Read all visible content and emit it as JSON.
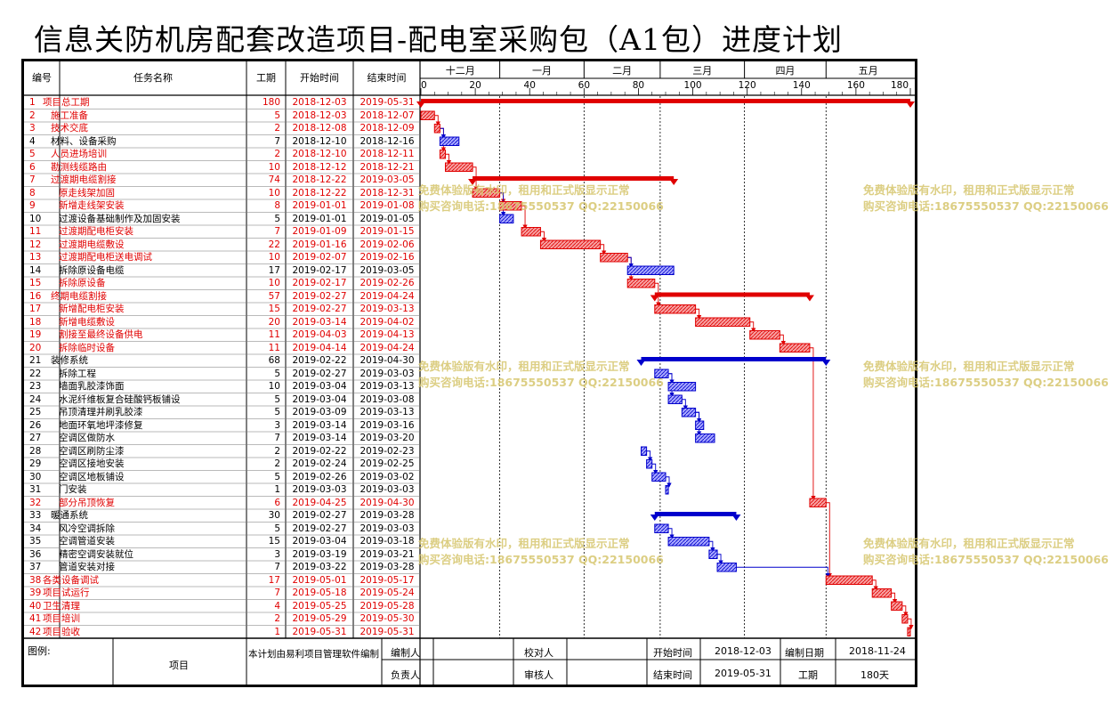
{
  "title": "信息关防机房配套改造项目-配电室采购包（A1包）进度计划",
  "header": {
    "id": "编号",
    "name": "任务名称",
    "duration": "工期",
    "start": "开始时间",
    "end": "结束时间"
  },
  "chart_data": {
    "type": "gantt",
    "months": [
      "十二月",
      "一月",
      "二月",
      "三月",
      "四月",
      "五月"
    ],
    "day_ticks": [
      "0",
      "20",
      "40",
      "60",
      "80",
      "100",
      "120",
      "140",
      "160",
      "180"
    ],
    "x_range_days": [
      0,
      180
    ],
    "project_start": "2018-12-03",
    "tasks": [
      {
        "id": "1",
        "name": "项目总工期",
        "duration": "180",
        "start": "2018-12-03",
        "end": "2019-05-31",
        "indent": 1,
        "summary": true,
        "critical": true
      },
      {
        "id": "2",
        "name": "施工准备",
        "duration": "5",
        "start": "2018-12-03",
        "end": "2018-12-07",
        "indent": 2,
        "summary": false,
        "critical": true
      },
      {
        "id": "3",
        "name": "技术交底",
        "duration": "2",
        "start": "2018-12-08",
        "end": "2018-12-09",
        "indent": 2,
        "summary": false,
        "critical": true
      },
      {
        "id": "4",
        "name": "材料、设备采购",
        "duration": "7",
        "start": "2018-12-10",
        "end": "2018-12-16",
        "indent": 2,
        "summary": false,
        "critical": false
      },
      {
        "id": "5",
        "name": "人员进场培训",
        "duration": "2",
        "start": "2018-12-10",
        "end": "2018-12-11",
        "indent": 2,
        "summary": false,
        "critical": true
      },
      {
        "id": "6",
        "name": "勘测线缆路由",
        "duration": "10",
        "start": "2018-12-12",
        "end": "2018-12-21",
        "indent": 2,
        "summary": false,
        "critical": true
      },
      {
        "id": "7",
        "name": "过渡期电缆割接",
        "duration": "74",
        "start": "2018-12-22",
        "end": "2019-03-05",
        "indent": 2,
        "summary": true,
        "critical": true
      },
      {
        "id": "8",
        "name": "原走线架加固",
        "duration": "10",
        "start": "2018-12-22",
        "end": "2018-12-31",
        "indent": 3,
        "summary": false,
        "critical": true
      },
      {
        "id": "9",
        "name": "新增走线架安装",
        "duration": "8",
        "start": "2019-01-01",
        "end": "2019-01-08",
        "indent": 3,
        "summary": false,
        "critical": true
      },
      {
        "id": "10",
        "name": "过渡设备基础制作及加固安装",
        "duration": "5",
        "start": "2019-01-01",
        "end": "2019-01-05",
        "indent": 3,
        "summary": false,
        "critical": false
      },
      {
        "id": "11",
        "name": "过渡期配电柜安装",
        "duration": "7",
        "start": "2019-01-09",
        "end": "2019-01-15",
        "indent": 3,
        "summary": false,
        "critical": true
      },
      {
        "id": "12",
        "name": "过渡期电缆敷设",
        "duration": "22",
        "start": "2019-01-16",
        "end": "2019-02-06",
        "indent": 3,
        "summary": false,
        "critical": true
      },
      {
        "id": "13",
        "name": "过渡期配电柜送电调试",
        "duration": "10",
        "start": "2019-02-07",
        "end": "2019-02-16",
        "indent": 3,
        "summary": false,
        "critical": true
      },
      {
        "id": "14",
        "name": "拆除原设备电缆",
        "duration": "17",
        "start": "2019-02-17",
        "end": "2019-03-05",
        "indent": 3,
        "summary": false,
        "critical": false
      },
      {
        "id": "15",
        "name": "拆除原设备",
        "duration": "10",
        "start": "2019-02-17",
        "end": "2019-02-26",
        "indent": 3,
        "summary": false,
        "critical": true
      },
      {
        "id": "16",
        "name": "终期电缆割接",
        "duration": "57",
        "start": "2019-02-27",
        "end": "2019-04-24",
        "indent": 2,
        "summary": true,
        "critical": true
      },
      {
        "id": "17",
        "name": "新增配电柜安装",
        "duration": "15",
        "start": "2019-02-27",
        "end": "2019-03-13",
        "indent": 3,
        "summary": false,
        "critical": true
      },
      {
        "id": "18",
        "name": "新增电缆敷设",
        "duration": "20",
        "start": "2019-03-14",
        "end": "2019-04-02",
        "indent": 3,
        "summary": false,
        "critical": true
      },
      {
        "id": "19",
        "name": "割接至最终设备供电",
        "duration": "11",
        "start": "2019-04-03",
        "end": "2019-04-13",
        "indent": 3,
        "summary": false,
        "critical": true
      },
      {
        "id": "20",
        "name": "拆除临时设备",
        "duration": "11",
        "start": "2019-04-14",
        "end": "2019-04-24",
        "indent": 3,
        "summary": false,
        "critical": true
      },
      {
        "id": "21",
        "name": "装修系统",
        "duration": "68",
        "start": "2019-02-22",
        "end": "2019-04-30",
        "indent": 2,
        "summary": true,
        "critical": false
      },
      {
        "id": "22",
        "name": "拆除工程",
        "duration": "5",
        "start": "2019-02-27",
        "end": "2019-03-03",
        "indent": 3,
        "summary": false,
        "critical": false
      },
      {
        "id": "23",
        "name": "墙面乳胶漆饰面",
        "duration": "10",
        "start": "2019-03-04",
        "end": "2019-03-13",
        "indent": 3,
        "summary": false,
        "critical": false
      },
      {
        "id": "24",
        "name": "水泥纤维板复合硅酸钙板铺设",
        "duration": "5",
        "start": "2019-03-04",
        "end": "2019-03-08",
        "indent": 3,
        "summary": false,
        "critical": false
      },
      {
        "id": "25",
        "name": "吊顶清理并刷乳胶漆",
        "duration": "5",
        "start": "2019-03-09",
        "end": "2019-03-13",
        "indent": 3,
        "summary": false,
        "critical": false
      },
      {
        "id": "26",
        "name": "地面环氧地坪漆修复",
        "duration": "3",
        "start": "2019-03-14",
        "end": "2019-03-16",
        "indent": 3,
        "summary": false,
        "critical": false
      },
      {
        "id": "27",
        "name": "空调区做防水",
        "duration": "7",
        "start": "2019-03-14",
        "end": "2019-03-20",
        "indent": 3,
        "summary": false,
        "critical": false
      },
      {
        "id": "28",
        "name": "空调区刷防尘漆",
        "duration": "2",
        "start": "2019-02-22",
        "end": "2019-02-23",
        "indent": 3,
        "summary": false,
        "critical": false
      },
      {
        "id": "29",
        "name": "空调区接地安装",
        "duration": "2",
        "start": "2019-02-24",
        "end": "2019-02-25",
        "indent": 3,
        "summary": false,
        "critical": false
      },
      {
        "id": "30",
        "name": "空调区地板铺设",
        "duration": "5",
        "start": "2019-02-26",
        "end": "2019-03-02",
        "indent": 3,
        "summary": false,
        "critical": false
      },
      {
        "id": "31",
        "name": "门安装",
        "duration": "1",
        "start": "2019-03-03",
        "end": "2019-03-03",
        "indent": 3,
        "summary": false,
        "critical": false
      },
      {
        "id": "32",
        "name": "部分吊顶恢复",
        "duration": "6",
        "start": "2019-04-25",
        "end": "2019-04-30",
        "indent": 3,
        "summary": false,
        "critical": true
      },
      {
        "id": "33",
        "name": "暖通系统",
        "duration": "30",
        "start": "2019-02-27",
        "end": "2019-03-28",
        "indent": 2,
        "summary": true,
        "critical": false
      },
      {
        "id": "34",
        "name": "风冷空调拆除",
        "duration": "5",
        "start": "2019-02-27",
        "end": "2019-03-03",
        "indent": 3,
        "summary": false,
        "critical": false
      },
      {
        "id": "35",
        "name": "空调管道安装",
        "duration": "15",
        "start": "2019-03-04",
        "end": "2019-03-18",
        "indent": 3,
        "summary": false,
        "critical": false
      },
      {
        "id": "36",
        "name": "精密空调安装就位",
        "duration": "3",
        "start": "2019-03-19",
        "end": "2019-03-21",
        "indent": 3,
        "summary": false,
        "critical": false
      },
      {
        "id": "37",
        "name": "管道安装对接",
        "duration": "7",
        "start": "2019-03-22",
        "end": "2019-03-28",
        "indent": 3,
        "summary": false,
        "critical": false
      },
      {
        "id": "38",
        "name": "各类设备调试",
        "duration": "17",
        "start": "2019-05-01",
        "end": "2019-05-17",
        "indent": 1,
        "summary": false,
        "critical": true
      },
      {
        "id": "39",
        "name": "项目试运行",
        "duration": "7",
        "start": "2019-05-18",
        "end": "2019-05-24",
        "indent": 1,
        "summary": false,
        "critical": true
      },
      {
        "id": "40",
        "name": "卫生清理",
        "duration": "4",
        "start": "2019-05-25",
        "end": "2019-05-28",
        "indent": 1,
        "summary": false,
        "critical": true
      },
      {
        "id": "41",
        "name": "项目培训",
        "duration": "2",
        "start": "2019-05-29",
        "end": "2019-05-30",
        "indent": 1,
        "summary": false,
        "critical": true
      },
      {
        "id": "42",
        "name": "项目验收",
        "duration": "1",
        "start": "2019-05-31",
        "end": "2019-05-31",
        "indent": 1,
        "summary": false,
        "critical": true
      }
    ],
    "links": [
      [
        "2",
        "3"
      ],
      [
        "3",
        "5"
      ],
      [
        "5",
        "6"
      ],
      [
        "6",
        "8"
      ],
      [
        "8",
        "9"
      ],
      [
        "9",
        "11"
      ],
      [
        "11",
        "12"
      ],
      [
        "12",
        "13"
      ],
      [
        "13",
        "15"
      ],
      [
        "15",
        "17"
      ],
      [
        "17",
        "18"
      ],
      [
        "18",
        "19"
      ],
      [
        "19",
        "20"
      ],
      [
        "20",
        "32"
      ],
      [
        "32",
        "38"
      ],
      [
        "38",
        "39"
      ],
      [
        "39",
        "40"
      ],
      [
        "40",
        "41"
      ],
      [
        "41",
        "42"
      ],
      [
        "3",
        "4"
      ],
      [
        "8",
        "10"
      ],
      [
        "13",
        "14"
      ],
      [
        "28",
        "29"
      ],
      [
        "29",
        "30"
      ],
      [
        "30",
        "31"
      ],
      [
        "22",
        "23"
      ],
      [
        "22",
        "24"
      ],
      [
        "24",
        "25"
      ],
      [
        "25",
        "26"
      ],
      [
        "25",
        "27"
      ],
      [
        "34",
        "35"
      ],
      [
        "35",
        "36"
      ],
      [
        "36",
        "37"
      ],
      [
        "37",
        "38"
      ]
    ],
    "colors": {
      "critical": "#e00000",
      "normal": "#0000cc",
      "critical_fill": "#f08080",
      "normal_fill": "#8080ff"
    }
  },
  "watermark": {
    "line1": "免费体验版有水印，租用和正式版显示正常",
    "line2": "购买咨询电话:18675550537 QQ:22150066"
  },
  "footer": {
    "legend_label": "图例:",
    "legend_project": "项目",
    "note": "本计划由易利项目管理软件编制",
    "compiler_label": "编制人",
    "checker_label": "校对人",
    "responsible_label": "负责人",
    "reviewer_label": "审核人",
    "start_label": "开始时间",
    "start_value": "2018-12-03",
    "end_label": "结束时间",
    "end_value": "2019-05-31",
    "date_label": "编制日期",
    "date_value": "2018-11-24",
    "duration_label": "工期",
    "duration_value": "180天"
  }
}
